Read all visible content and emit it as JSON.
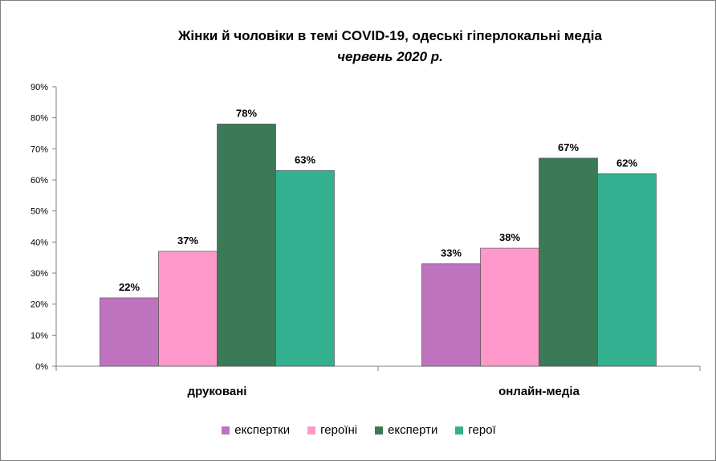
{
  "chart_data": {
    "type": "bar",
    "title": "Жінки й чоловіки в темі COVID-19, одеські гіперлокальні медіа",
    "subtitle": "червень 2020 р.",
    "categories": [
      "друковані",
      "онлайн-медіа"
    ],
    "series": [
      {
        "name": "експертки",
        "values": [
          22,
          33
        ],
        "color": "#bf72bd"
      },
      {
        "name": "героїні",
        "values": [
          37,
          38
        ],
        "color": "#ff99cc"
      },
      {
        "name": "експерти",
        "values": [
          78,
          67
        ],
        "color": "#3b7a57"
      },
      {
        "name": "герої",
        "values": [
          63,
          62
        ],
        "color": "#33b08f"
      }
    ],
    "value_suffix": "%",
    "ylim": [
      0,
      90
    ],
    "yticks": [
      "0%",
      "10%",
      "20%",
      "30%",
      "40%",
      "50%",
      "60%",
      "70%",
      "80%",
      "90%"
    ],
    "grid": false,
    "legend_position": "bottom"
  }
}
